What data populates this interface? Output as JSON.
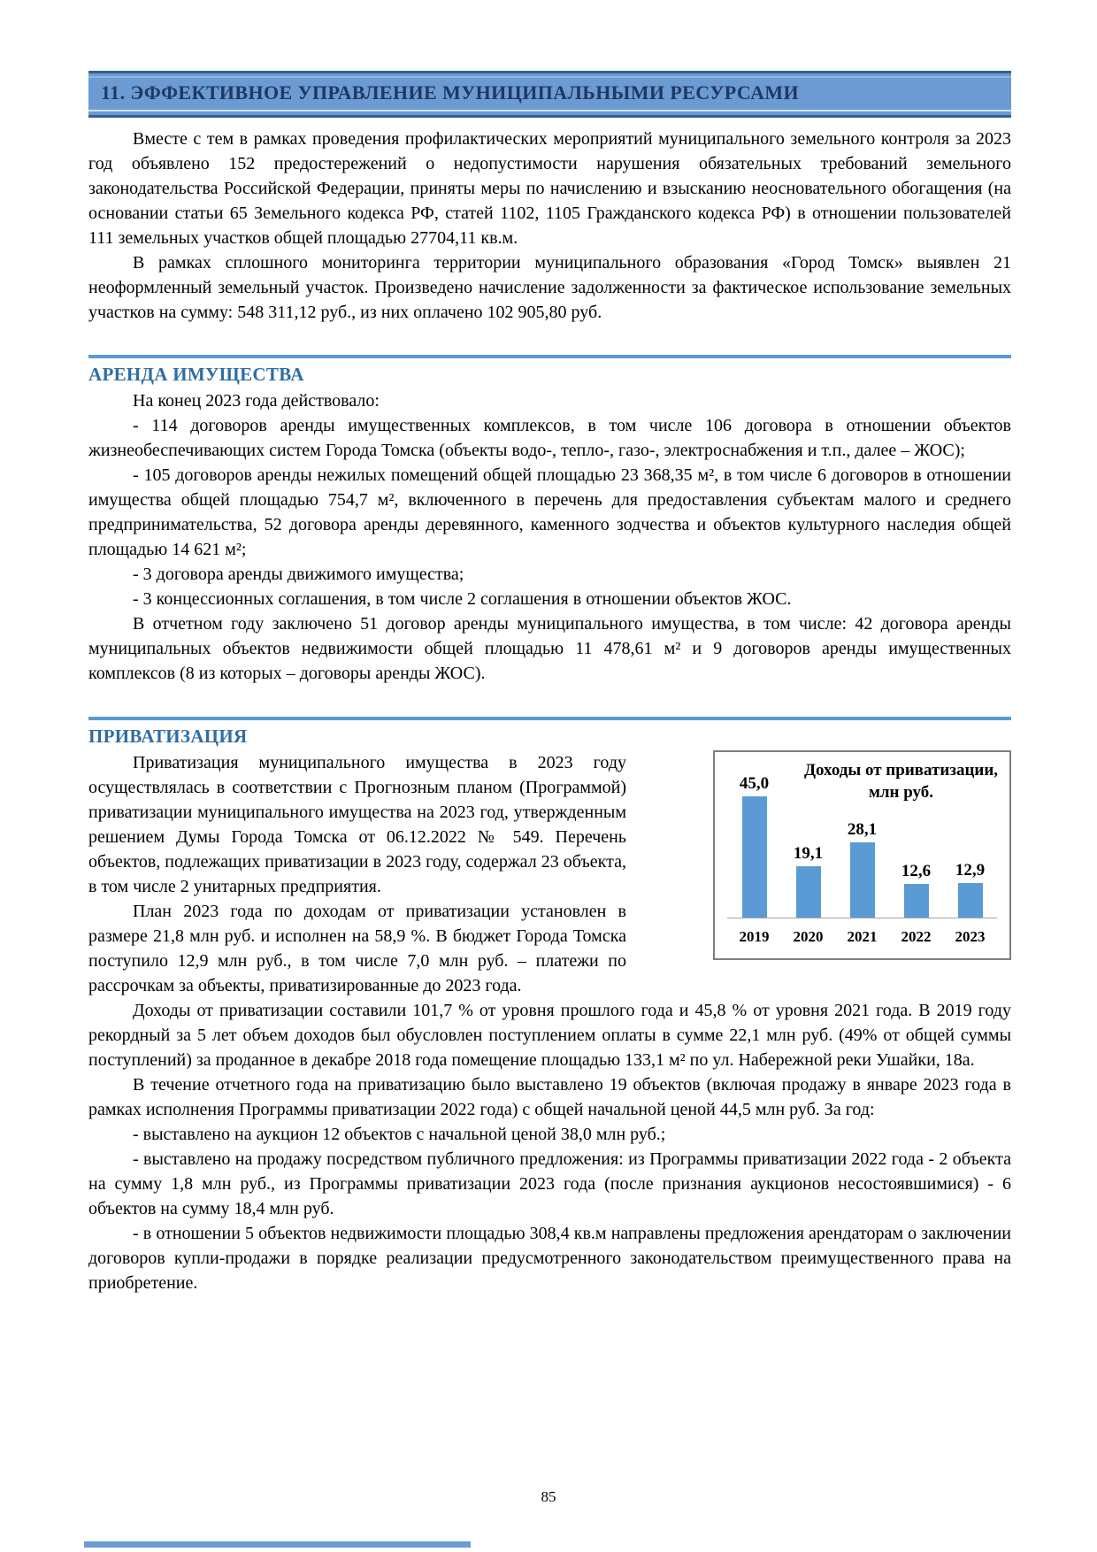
{
  "banner": {
    "title": "11. ЭФФЕКТИВНОЕ УПРАВЛЕНИЕ МУНИЦИПАЛЬНЫМИ РЕСУРСАМИ"
  },
  "intro": {
    "p1": "Вместе с тем в рамках проведения профилактических мероприятий муниципального земельного контроля за 2023 год объявлено 152 предостережений о недопустимости нарушения обязательных требований земельного законодательства Российской Федерации, приняты меры по начислению и взысканию неосновательного обогащения (на основании статьи 65 Земельного кодекса РФ, статей 1102, 1105 Гражданского кодекса РФ) в отношении пользователей 111 земельных участков общей площадью 27704,11 кв.м.",
    "p2": "В рамках сплошного мониторинга территории муниципального образования «Город Томск» выявлен 21 неоформленный земельный участок. Произведено начисление задолженности за фактическое использование земельных участков на сумму: 548 311,12 руб., из них оплачено 102 905,80 руб."
  },
  "arenda": {
    "heading": "АРЕНДА ИМУЩЕСТВА",
    "lead": "На конец 2023 года действовало:",
    "items": [
      "- 114 договоров аренды имущественных комплексов, в том числе 106 договора в отношении объектов жизнеобеспечивающих систем Города Томска (объекты водо-, тепло-, газо-, электроснабжения и т.п., далее – ЖОС);",
      "- 105 договоров аренды нежилых помещений общей площадью 23 368,35 м², в том числе 6 договоров в отношении имущества общей площадью 754,7 м², включенного в перечень для предоставления субъектам малого и среднего предпринимательства, 52 договора аренды деревянного, каменного зодчества и объектов культурного наследия общей площадью 14 621 м²;",
      "- 3 договора аренды движимого имущества;",
      "- 3 концессионных соглашения, в том числе 2 соглашения в отношении объектов ЖОС."
    ],
    "closing": "В отчетном году заключено 51 договор аренды муниципального имущества, в том числе: 42 договора аренды муниципальных объектов недвижимости общей площадью 11 478,61 м² и 9 договоров аренды имущественных комплексов (8 из которых – договоры аренды ЖОС)."
  },
  "privatizaciya": {
    "heading": "ПРИВАТИЗАЦИЯ",
    "p1": "Приватизация муниципального имущества в 2023 году осуществлялась в соответствии с Прогнозным планом (Программой) приватизации муниципального имущества на 2023 год, утвержденным решением Думы Города Томска от 06.12.2022 № 549. Перечень объектов, подлежащих приватизации в 2023 году, содержал 23 объекта, в том числе 2 унитарных предприятия.",
    "p2": "План 2023 года по доходам от приватизации установлен в размере 21,8 млн руб. и исполнен на 58,9 %. В бюджет Города Томска поступило 12,9 млн руб., в том числе 7,0 млн руб. – платежи по рассрочкам за объекты, приватизированные до 2023 года.",
    "p3": "Доходы от приватизации составили 101,7 % от уровня прошлого года и 45,8 % от уровня 2021 года. В 2019 году рекордный за 5 лет объем доходов был обусловлен поступлением оплаты в сумме 22,1 млн руб. (49% от общей суммы поступлений) за проданное в декабре 2018 года помещение площадью 133,1 м² по ул. Набережной реки Ушайки, 18а.",
    "p4": "В течение отчетного года на приватизацию было выставлено 19 объектов (включая продажу в январе 2023 года в рамках исполнения Программы приватизации 2022 года) с общей начальной ценой 44,5 млн руб. За год:",
    "items": [
      "- выставлено на аукцион 12 объектов с начальной ценой 38,0 млн руб.;",
      "- выставлено на продажу посредством публичного предложения: из Программы приватизации 2022 года - 2 объекта на сумму 1,8 млн руб., из Программы приватизации 2023 года (после признания аукционов несостоявшимися) - 6 объектов на сумму 18,4 млн руб.",
      "- в отношении 5 объектов недвижимости площадью 308,4 кв.м направлены предложения арендаторам о заключении договоров купли-продажи в порядке реализации предусмотренного законодательством преимущественного права на приобретение."
    ]
  },
  "chart_data": {
    "type": "bar",
    "title": "Доходы от приватизации, млн руб.",
    "categories": [
      "2019",
      "2020",
      "2021",
      "2022",
      "2023"
    ],
    "values": [
      45.0,
      19.1,
      28.1,
      12.6,
      12.9
    ],
    "value_labels": [
      "45,0",
      "19,1",
      "28,1",
      "12,6",
      "12,9"
    ],
    "bar_color": "#5B9BD5",
    "ylim": [
      0,
      48
    ],
    "grid": false,
    "legend": "none"
  },
  "footer": {
    "page_number": "85"
  },
  "colors": {
    "banner_bg": "#6B9BD2",
    "banner_text": "#1F3864",
    "section_heading": "#2E6DA4",
    "section_rule": "#5B9BD5",
    "bar": "#5B9BD5"
  }
}
